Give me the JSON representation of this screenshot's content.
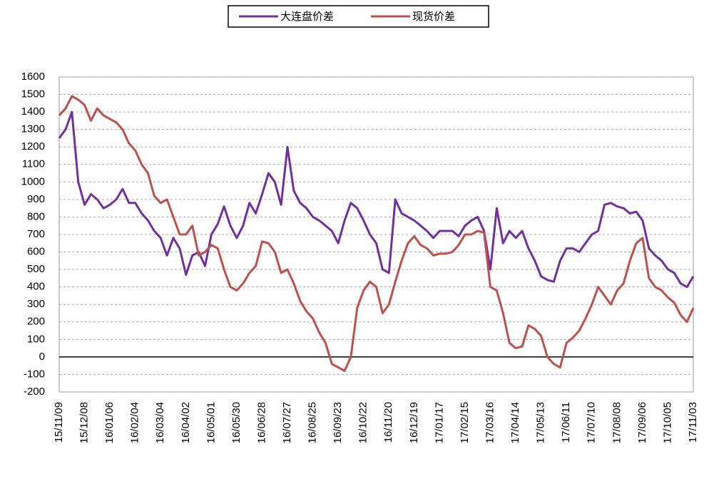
{
  "chart_data": {
    "type": "line",
    "categories": [
      "15/11/09",
      null,
      null,
      null,
      "15/12/08",
      null,
      null,
      null,
      "16/01/06",
      null,
      null,
      null,
      "16/02/04",
      null,
      null,
      null,
      "16/03/04",
      null,
      null,
      null,
      "16/04/02",
      null,
      null,
      null,
      "16/05/01",
      null,
      null,
      null,
      "16/05/30",
      null,
      null,
      null,
      "16/06/28",
      null,
      null,
      null,
      "16/07/27",
      null,
      null,
      null,
      "16/08/25",
      null,
      null,
      null,
      "16/09/23",
      null,
      null,
      null,
      "16/10/22",
      null,
      null,
      null,
      "16/11/20",
      null,
      null,
      null,
      "16/12/19",
      null,
      null,
      null,
      "17/01/17",
      null,
      null,
      null,
      "17/02/15",
      null,
      null,
      null,
      "17/03/16",
      null,
      null,
      null,
      "17/04/14",
      null,
      null,
      null,
      "17/05/13",
      null,
      null,
      null,
      "17/06/11",
      null,
      null,
      null,
      "17/07/10",
      null,
      null,
      null,
      "17/08/08",
      null,
      null,
      null,
      "17/09/06",
      null,
      null,
      null,
      "17/10/05",
      null,
      null,
      null,
      "17/11/03"
    ],
    "series": [
      {
        "name": "大连盘价差",
        "color": "#7030a0",
        "values": [
          1250,
          1300,
          1400,
          1000,
          870,
          930,
          900,
          850,
          870,
          900,
          960,
          880,
          880,
          820,
          780,
          720,
          680,
          580,
          680,
          620,
          470,
          580,
          600,
          520,
          700,
          760,
          860,
          750,
          680,
          750,
          880,
          820,
          930,
          1050,
          1000,
          870,
          1200,
          950,
          880,
          850,
          800,
          780,
          750,
          720,
          650,
          780,
          880,
          850,
          780,
          700,
          650,
          500,
          480,
          900,
          820,
          800,
          780,
          750,
          720,
          680,
          720,
          720,
          720,
          690,
          750,
          780,
          800,
          720,
          500,
          850,
          650,
          720,
          680,
          720,
          620,
          550,
          460,
          440,
          430,
          550,
          620,
          620,
          600,
          650,
          700,
          720,
          870,
          880,
          860,
          850,
          820,
          830,
          780,
          620,
          580,
          550,
          500,
          480,
          420,
          400,
          460
        ]
      },
      {
        "name": "现货价差",
        "color": "#c0504d",
        "values": [
          1380,
          1420,
          1490,
          1470,
          1440,
          1350,
          1420,
          1380,
          1360,
          1340,
          1300,
          1220,
          1180,
          1100,
          1050,
          920,
          880,
          900,
          800,
          700,
          700,
          750,
          580,
          600,
          640,
          620,
          500,
          400,
          380,
          420,
          480,
          520,
          660,
          650,
          600,
          480,
          500,
          420,
          320,
          260,
          220,
          140,
          80,
          -40,
          -60,
          -80,
          0,
          280,
          380,
          430,
          400,
          250,
          300,
          430,
          550,
          650,
          690,
          640,
          620,
          580,
          590,
          590,
          600,
          640,
          700,
          700,
          720,
          710,
          400,
          380,
          250,
          80,
          50,
          60,
          180,
          160,
          120,
          0,
          -40,
          -60,
          80,
          110,
          150,
          220,
          300,
          400,
          350,
          300,
          380,
          420,
          550,
          650,
          680,
          450,
          400,
          380,
          340,
          310,
          240,
          200,
          280
        ]
      }
    ],
    "ylim": [
      -200,
      1600
    ],
    "yticks": [
      -200,
      -100,
      0,
      100,
      200,
      300,
      400,
      500,
      600,
      700,
      800,
      900,
      1000,
      1100,
      1200,
      1300,
      1400,
      1500,
      1600
    ],
    "grid": true
  }
}
